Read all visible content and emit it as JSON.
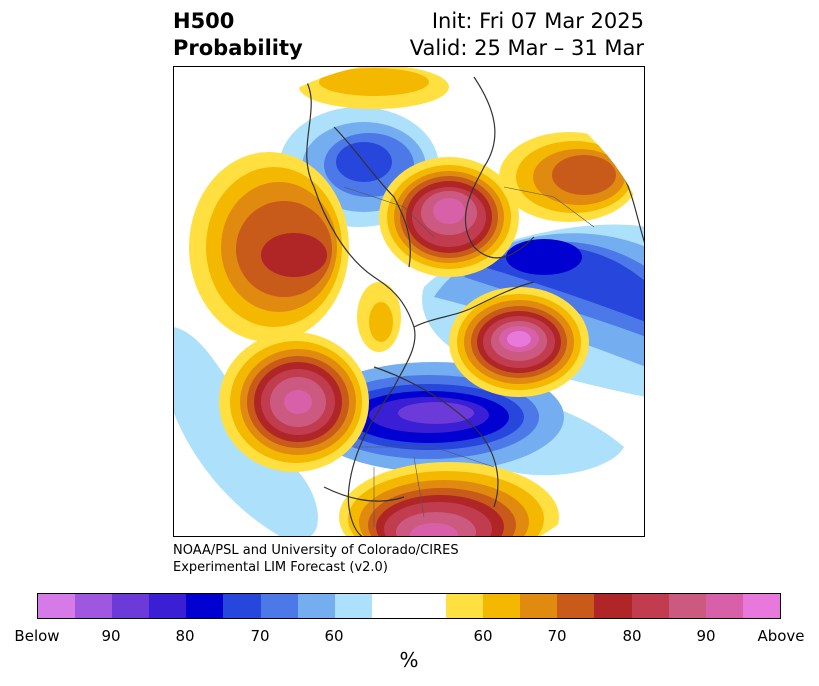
{
  "title": {
    "left_line1": "H500",
    "left_line2": "Probability",
    "init": "Init: Fri 07 Mar 2025",
    "valid": "Valid: 25 Mar – 31 Mar"
  },
  "credit": {
    "line1": "NOAA/PSL and University of Colorado/CIRES",
    "line2": "Experimental LIM Forecast (v2.0)"
  },
  "colorbar": {
    "colors": [
      "#d67ae8",
      "#a057e0",
      "#6c3ad8",
      "#3b1fd4",
      "#0000d0",
      "#2646dc",
      "#4d78e8",
      "#74aef0",
      "#ade0fa",
      "#ffffff",
      "#ffffff",
      "#ffe040",
      "#f5b800",
      "#e08a10",
      "#c85a1a",
      "#b02626",
      "#c23c50",
      "#cc5a80",
      "#d860a8",
      "#e878dc"
    ],
    "tick_labels": [
      "Below",
      "90",
      "80",
      "70",
      "60",
      "60",
      "70",
      "80",
      "90",
      "Above"
    ],
    "unit": "%"
  }
}
